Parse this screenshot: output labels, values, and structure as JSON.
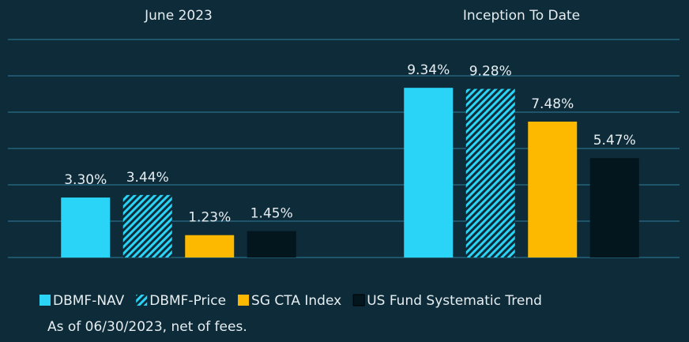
{
  "chart_data": {
    "type": "bar",
    "categories": [
      "June 2023",
      "Inception To Date"
    ],
    "series": [
      {
        "name": "DBMF-NAV",
        "color": "#29d4f6",
        "values": [
          3.3,
          9.34
        ],
        "value_labels": [
          "3.30%",
          "9.34%"
        ]
      },
      {
        "name": "DBMF-Price",
        "color": "#29d4f6",
        "hatch": true,
        "values": [
          3.44,
          9.28
        ],
        "value_labels": [
          "3.44%",
          "9.28%"
        ]
      },
      {
        "name": "SG CTA Index",
        "color": "#fcb900",
        "values": [
          1.23,
          7.48
        ],
        "value_labels": [
          "1.23%",
          "7.48%"
        ]
      },
      {
        "name": "US Fund Systematic Trend",
        "color": "#03151d",
        "values": [
          1.45,
          5.47
        ],
        "value_labels": [
          "1.45%",
          "5.47%"
        ]
      }
    ],
    "ylim": [
      0,
      12
    ],
    "yticks": [
      0,
      2,
      4,
      6,
      8,
      10,
      12
    ],
    "grid": true,
    "footnote": "As of 06/30/2023, net of fees."
  }
}
